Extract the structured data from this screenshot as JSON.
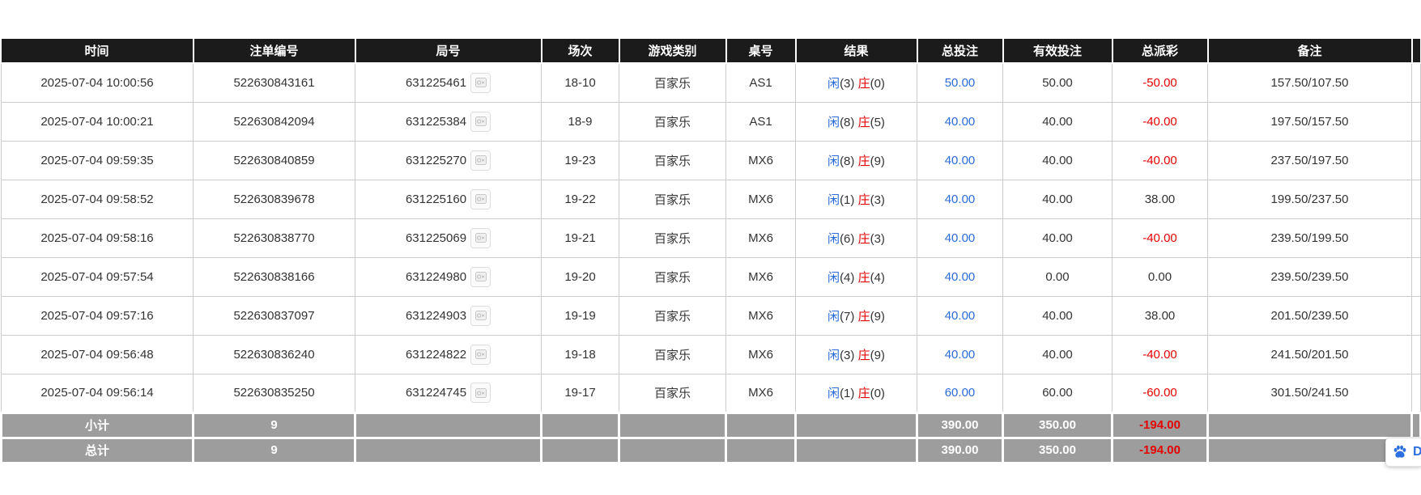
{
  "colors": {
    "accent_blue": "#2b6cd9",
    "negative_red": "#e50000",
    "header_bg": "#1b1b1b",
    "summary_bg": "#9d9d9d",
    "widget_blue": "#2b6fe0"
  },
  "table": {
    "columns": [
      {
        "key": "time",
        "label": "时间"
      },
      {
        "key": "bet_id",
        "label": "注单编号"
      },
      {
        "key": "round_id",
        "label": "局号"
      },
      {
        "key": "session",
        "label": "场次"
      },
      {
        "key": "game_type",
        "label": "游戏类别"
      },
      {
        "key": "table_no",
        "label": "桌号"
      },
      {
        "key": "result",
        "label": "结果"
      },
      {
        "key": "total_bet",
        "label": "总投注"
      },
      {
        "key": "valid_bet",
        "label": "有效投注"
      },
      {
        "key": "total_payout",
        "label": "总派彩"
      },
      {
        "key": "remark",
        "label": "备注"
      }
    ],
    "result_labels": {
      "player": "闲",
      "banker": "庄"
    },
    "rows": [
      {
        "time": "2025-07-04 10:00:56",
        "bet_id": "522630843161",
        "round_id": "631225461",
        "session": "18-10",
        "game_type": "百家乐",
        "table_no": "AS1",
        "result": {
          "player": "(3)",
          "banker": "(0)"
        },
        "total_bet": "50.00",
        "valid_bet": "50.00",
        "total_payout": "-50.00",
        "remark": "157.50/107.50"
      },
      {
        "time": "2025-07-04 10:00:21",
        "bet_id": "522630842094",
        "round_id": "631225384",
        "session": "18-9",
        "game_type": "百家乐",
        "table_no": "AS1",
        "result": {
          "player": "(8)",
          "banker": "(5)"
        },
        "total_bet": "40.00",
        "valid_bet": "40.00",
        "total_payout": "-40.00",
        "remark": "197.50/157.50"
      },
      {
        "time": "2025-07-04 09:59:35",
        "bet_id": "522630840859",
        "round_id": "631225270",
        "session": "19-23",
        "game_type": "百家乐",
        "table_no": "MX6",
        "result": {
          "player": "(8)",
          "banker": "(9)"
        },
        "total_bet": "40.00",
        "valid_bet": "40.00",
        "total_payout": "-40.00",
        "remark": "237.50/197.50"
      },
      {
        "time": "2025-07-04 09:58:52",
        "bet_id": "522630839678",
        "round_id": "631225160",
        "session": "19-22",
        "game_type": "百家乐",
        "table_no": "MX6",
        "result": {
          "player": "(1)",
          "banker": "(3)"
        },
        "total_bet": "40.00",
        "valid_bet": "40.00",
        "total_payout": "38.00",
        "remark": "199.50/237.50"
      },
      {
        "time": "2025-07-04 09:58:16",
        "bet_id": "522630838770",
        "round_id": "631225069",
        "session": "19-21",
        "game_type": "百家乐",
        "table_no": "MX6",
        "result": {
          "player": "(6)",
          "banker": "(3)"
        },
        "total_bet": "40.00",
        "valid_bet": "40.00",
        "total_payout": "-40.00",
        "remark": "239.50/199.50"
      },
      {
        "time": "2025-07-04 09:57:54",
        "bet_id": "522630838166",
        "round_id": "631224980",
        "session": "19-20",
        "game_type": "百家乐",
        "table_no": "MX6",
        "result": {
          "player": "(4)",
          "banker": "(4)"
        },
        "total_bet": "40.00",
        "valid_bet": "0.00",
        "total_payout": "0.00",
        "remark": "239.50/239.50"
      },
      {
        "time": "2025-07-04 09:57:16",
        "bet_id": "522630837097",
        "round_id": "631224903",
        "session": "19-19",
        "game_type": "百家乐",
        "table_no": "MX6",
        "result": {
          "player": "(7)",
          "banker": "(9)"
        },
        "total_bet": "40.00",
        "valid_bet": "40.00",
        "total_payout": "38.00",
        "remark": "201.50/239.50"
      },
      {
        "time": "2025-07-04 09:56:48",
        "bet_id": "522630836240",
        "round_id": "631224822",
        "session": "19-18",
        "game_type": "百家乐",
        "table_no": "MX6",
        "result": {
          "player": "(3)",
          "banker": "(9)"
        },
        "total_bet": "40.00",
        "valid_bet": "40.00",
        "total_payout": "-40.00",
        "remark": "241.50/201.50"
      },
      {
        "time": "2025-07-04 09:56:14",
        "bet_id": "522630835250",
        "round_id": "631224745",
        "session": "19-17",
        "game_type": "百家乐",
        "table_no": "MX6",
        "result": {
          "player": "(1)",
          "banker": "(0)"
        },
        "total_bet": "60.00",
        "valid_bet": "60.00",
        "total_payout": "-60.00",
        "remark": "301.50/241.50"
      }
    ],
    "subtotal": {
      "label": "小计",
      "count": "9",
      "total_bet": "390.00",
      "valid_bet": "350.00",
      "total_payout": "-194.00"
    },
    "total": {
      "label": "总计",
      "count": "9",
      "total_bet": "390.00",
      "valid_bet": "350.00",
      "total_payout": "-194.00"
    }
  },
  "floating_widget": {
    "letter": "D"
  }
}
